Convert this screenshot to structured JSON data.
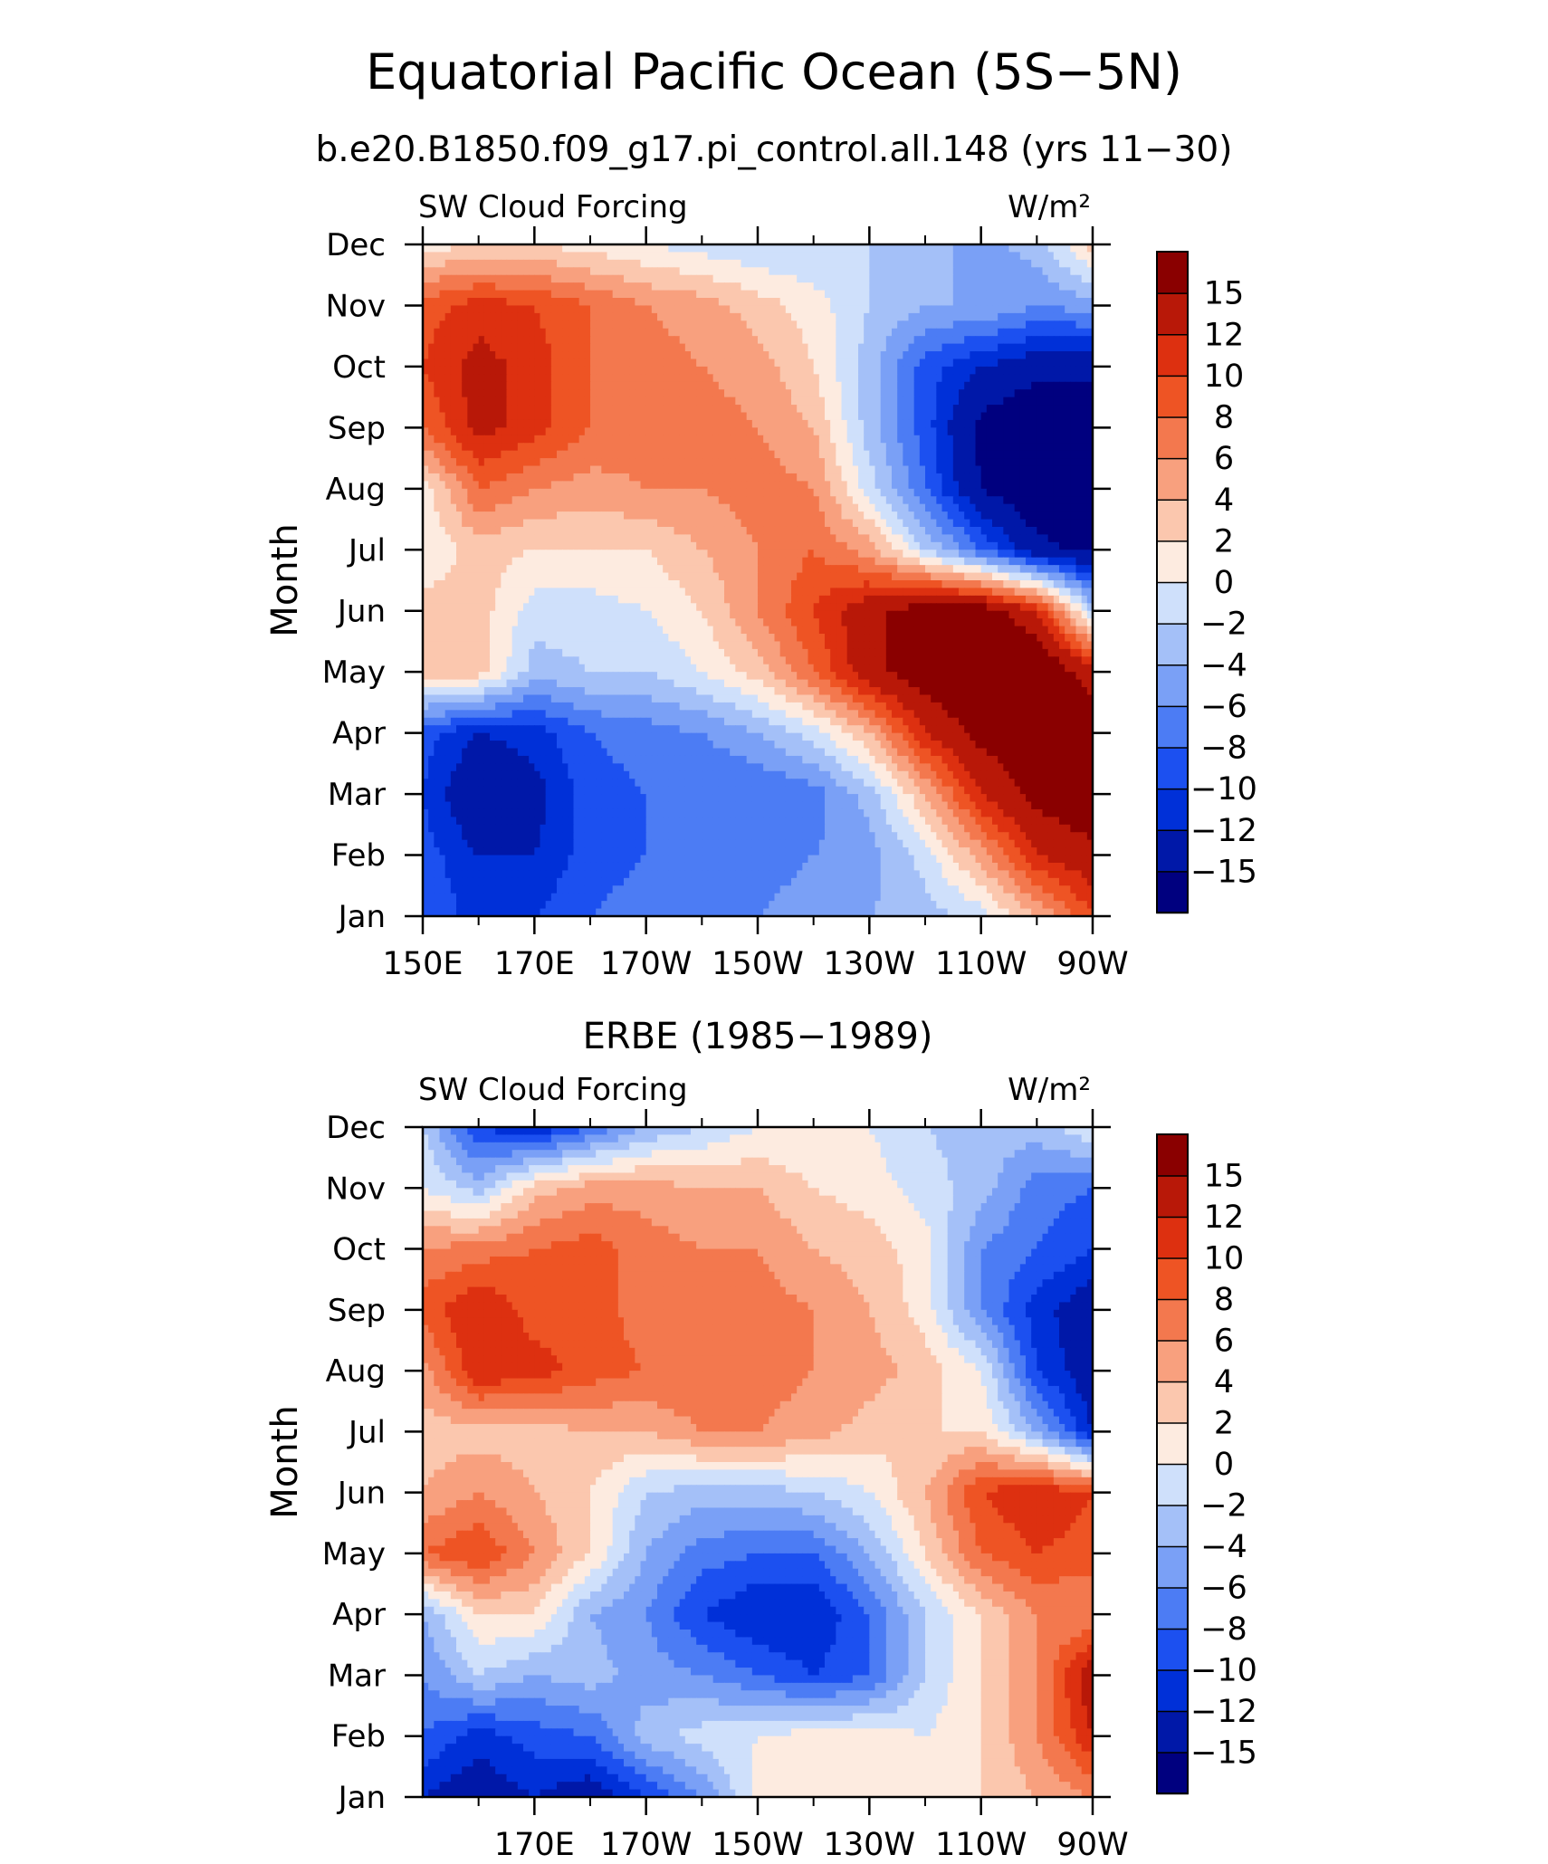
{
  "title": "Equatorial Pacific Ocean (5S−5N)",
  "subtitle": "b.e20.B1850.f09_g17.pi_control.all.148 (yrs 11−30)",
  "palette": [
    "#00007f",
    "#0018a8",
    "#0030d8",
    "#1c50f0",
    "#4c7cf4",
    "#7aa0f6",
    "#a4c0f8",
    "#cfe0fb",
    "#fdebe0",
    "#fbc7ae",
    "#f8a07e",
    "#f3784e",
    "#ee5424",
    "#dd3010",
    "#b81808",
    "#8a0000"
  ],
  "colorbar": {
    "labels": [
      "15",
      "12",
      "10",
      "8",
      "6",
      "4",
      "2",
      "0",
      "−2",
      "−4",
      "−6",
      "−8",
      "−10",
      "−12",
      "−15"
    ]
  },
  "chart_data": [
    {
      "type": "heatmap",
      "panel_title": "",
      "left_label": "SW Cloud Forcing",
      "right_label": "W/m²",
      "ylabel": "Month",
      "xlabel": "",
      "x_tick_labels": [
        "150E",
        "170E",
        "170W",
        "150W",
        "130W",
        "110W",
        "90W"
      ],
      "y_tick_labels": [
        "Jan",
        "Feb",
        "Mar",
        "Apr",
        "May",
        "Jun",
        "Jul",
        "Aug",
        "Sep",
        "Oct",
        "Nov",
        "Dec"
      ],
      "x_range": [
        150,
        270
      ],
      "y_range": [
        1,
        12
      ],
      "levels": [
        -15,
        -12,
        -10,
        -8,
        -6,
        -4,
        -2,
        0,
        2,
        4,
        6,
        8,
        10,
        12,
        15
      ],
      "x": [
        150,
        160,
        170,
        180,
        190,
        200,
        210,
        220,
        230,
        240,
        250,
        260,
        270
      ],
      "months": [
        "Jan",
        "Feb",
        "Mar",
        "Apr",
        "May",
        "Jun",
        "Jul",
        "Aug",
        "Sep",
        "Oct",
        "Nov",
        "Dec"
      ],
      "z": [
        [
          -8,
          -11,
          -10,
          -8,
          -7,
          -6,
          -6,
          -5,
          -4,
          -3,
          -1,
          4,
          10
        ],
        [
          -9,
          -12,
          -12,
          -9,
          -8,
          -7,
          -7,
          -6,
          -5,
          -1,
          5,
          12,
          14
        ],
        [
          -10,
          -15,
          -13,
          -9,
          -8,
          -8,
          -8,
          -7,
          -3,
          4,
          12,
          16,
          18
        ],
        [
          -9,
          -12,
          -11,
          -8,
          -7,
          -6,
          -4,
          -1,
          4,
          12,
          16,
          18,
          18
        ],
        [
          3,
          3,
          -3,
          -2,
          -2,
          0,
          3,
          8,
          14,
          17,
          19,
          19,
          13
        ],
        [
          3,
          3,
          -1,
          -1,
          0,
          2,
          6,
          10,
          14,
          17,
          17,
          12,
          -2
        ],
        [
          0,
          3,
          2,
          2,
          2,
          4,
          6,
          8,
          5,
          -2,
          -8,
          -14,
          -16
        ],
        [
          1,
          8,
          6,
          5,
          6,
          6,
          7,
          6,
          -1,
          -8,
          -15,
          -18,
          -18
        ],
        [
          8,
          13,
          11,
          8,
          7,
          7,
          6,
          4,
          -3,
          -9,
          -16,
          -18,
          -18
        ],
        [
          10,
          13,
          11,
          8,
          7,
          6,
          5,
          2,
          -3,
          -9,
          -12,
          -14,
          -14
        ],
        [
          9,
          11,
          10,
          8,
          6,
          5,
          3,
          1,
          -2,
          -4,
          -4,
          -6,
          -5
        ],
        [
          1,
          2,
          2,
          1,
          0,
          -1,
          -2,
          -2,
          -2,
          -3,
          -5,
          -3,
          3
        ]
      ]
    },
    {
      "type": "heatmap",
      "panel_title": "ERBE (1985−1989)",
      "left_label": "SW Cloud Forcing",
      "right_label": "W/m²",
      "ylabel": "Month",
      "xlabel": "",
      "x_tick_labels": [
        "170E",
        "170W",
        "150W",
        "130W",
        "110W",
        "90W"
      ],
      "y_tick_labels": [
        "Jan",
        "Feb",
        "Mar",
        "Apr",
        "May",
        "Jun",
        "Jul",
        "Aug",
        "Sep",
        "Oct",
        "Nov",
        "Dec"
      ],
      "x_range": [
        150,
        270
      ],
      "y_range": [
        1,
        12
      ],
      "levels": [
        -15,
        -12,
        -10,
        -8,
        -6,
        -4,
        -2,
        0,
        2,
        4,
        6,
        8,
        10,
        12,
        15
      ],
      "x": [
        150,
        160,
        170,
        180,
        190,
        200,
        210,
        220,
        230,
        240,
        250,
        260,
        270
      ],
      "months": [
        "Jan",
        "Feb",
        "Mar",
        "Apr",
        "May",
        "Jun",
        "Jul",
        "Aug",
        "Sep",
        "Oct",
        "Nov",
        "Dec"
      ],
      "z": [
        [
          -12,
          -14,
          -12,
          -14,
          -10,
          -6,
          1,
          1,
          1,
          0,
          2,
          4,
          6
        ],
        [
          -8,
          -11,
          -9,
          -8,
          -3,
          -1,
          0,
          1,
          1,
          0,
          2,
          6,
          12
        ],
        [
          -6,
          -2,
          -4,
          -3,
          -5,
          -6,
          -8,
          -10,
          -8,
          -2,
          2,
          6,
          14
        ],
        [
          -4,
          2,
          2,
          -4,
          -6,
          -10,
          -12,
          -12,
          -8,
          -2,
          2,
          6,
          6
        ],
        [
          8,
          10,
          6,
          2,
          -4,
          -7,
          -8,
          -8,
          -4,
          2,
          8,
          10,
          9
        ],
        [
          4,
          6,
          4,
          2,
          -2,
          -3,
          -3,
          -2,
          0,
          4,
          10,
          12,
          10
        ],
        [
          3,
          3,
          3,
          4,
          4,
          6,
          6,
          5,
          3,
          2,
          2,
          -4,
          -12
        ],
        [
          5,
          12,
          11,
          9,
          8,
          8,
          7,
          6,
          5,
          3,
          0,
          -10,
          -14
        ],
        [
          9,
          12,
          9,
          9,
          7,
          7,
          7,
          6,
          4,
          1,
          -6,
          -11,
          -14
        ],
        [
          6,
          7,
          8,
          9,
          7,
          6,
          6,
          4,
          3,
          1,
          -6,
          -8,
          -10
        ],
        [
          0,
          -3,
          3,
          5,
          5,
          4,
          4,
          2,
          1,
          -1,
          -3,
          -7,
          -8
        ],
        [
          -2,
          -10,
          -12,
          -8,
          -4,
          -2,
          0,
          0,
          0,
          -2,
          -3,
          -3,
          0
        ]
      ]
    }
  ]
}
